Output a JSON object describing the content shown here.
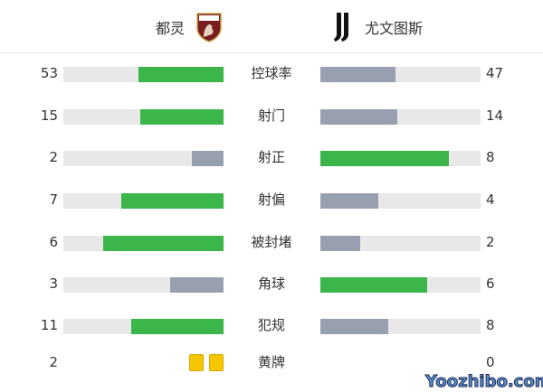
{
  "home": {
    "name": "都灵",
    "logo": "torino-crest",
    "logo_text": "TORINO FC"
  },
  "away": {
    "name": "尤文图斯",
    "logo": "juventus-j-logo"
  },
  "colors": {
    "leader": "#3cb54a",
    "trailer": "#98a0b0",
    "track": "#e8e8e8",
    "yellow_card": "#f6c700"
  },
  "stats": [
    {
      "label": "控球率",
      "home": 53,
      "away": 47
    },
    {
      "label": "射门",
      "home": 15,
      "away": 14
    },
    {
      "label": "射正",
      "home": 2,
      "away": 8
    },
    {
      "label": "射偏",
      "home": 7,
      "away": 4
    },
    {
      "label": "被封堵",
      "home": 6,
      "away": 2
    },
    {
      "label": "角球",
      "home": 3,
      "away": 6
    },
    {
      "label": "犯规",
      "home": 11,
      "away": 8
    }
  ],
  "yellow": {
    "label": "黄牌",
    "home": 2,
    "away": 0
  },
  "watermark": "Yoozhibo.com"
}
